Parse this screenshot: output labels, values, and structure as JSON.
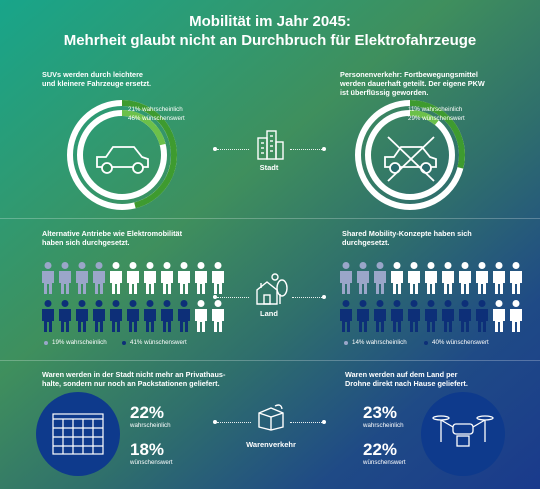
{
  "header": {
    "line1": "Mobilität im Jahr 2045:",
    "line2": "Mehrheit glaubt nicht an Durchbruch für Elektrofahrzeuge"
  },
  "stadt": {
    "hub_label": "Stadt",
    "left": {
      "text_line1": "SUVs werden durch leichtere",
      "text_line2": "und kleinere Fahrzeuge ersetzt.",
      "stat1": "21% wahrscheinlich",
      "stat2": "46% wünschenswert",
      "values": [
        21,
        46
      ]
    },
    "right": {
      "text_line1": "Personenverkehr: Fortbewegungsmittel",
      "text_line2": "werden dauerhaft geteilt. Der eigene PKW",
      "text_line3": "ist überflüssig geworden.",
      "stat1": "11% wahrscheinlich",
      "stat2": "29% wünschenswert",
      "values": [
        11,
        29
      ]
    }
  },
  "land": {
    "hub_label": "Land",
    "left": {
      "text_line1": "Alternative Antriebe wie Elektromobilität",
      "text_line2": "haben sich durchgesetzt.",
      "stat1": "19% wahrscheinlich",
      "stat2": "41% wünschenswert",
      "values": [
        19,
        41
      ]
    },
    "right": {
      "text_line1": "Shared Mobility-Konzepte haben sich",
      "text_line2": "durchgesetzt.",
      "stat1": "14% wahrscheinlich",
      "stat2": "40% wünschenswert",
      "values": [
        14,
        40
      ]
    }
  },
  "waren": {
    "hub_label": "Warenverkehr",
    "left": {
      "text_line1": "Waren werden in der Stadt nicht mehr an Privathaus-",
      "text_line2": "halte, sondern nur noch an Packstationen geliefert.",
      "pct1": "22%",
      "lab1": "wahrscheinlich",
      "pct2": "18%",
      "lab2": "wünschenswert"
    },
    "right": {
      "text_line1": "Waren werden auf dem Land per",
      "text_line2": "Drohne direkt nach Hause geliefert.",
      "pct1": "23%",
      "lab1": "wahrscheinlich",
      "pct2": "22%",
      "lab2": "wünschenswert"
    }
  },
  "colors": {
    "likely": "#6cc04a",
    "desired": "#3e9b2f",
    "ring_base": "#ffffff",
    "person_likely": "#9aa6c9",
    "person_desired": "#0d2f78",
    "person_rest": "#ffffff",
    "circle": "#0e3a8c"
  }
}
